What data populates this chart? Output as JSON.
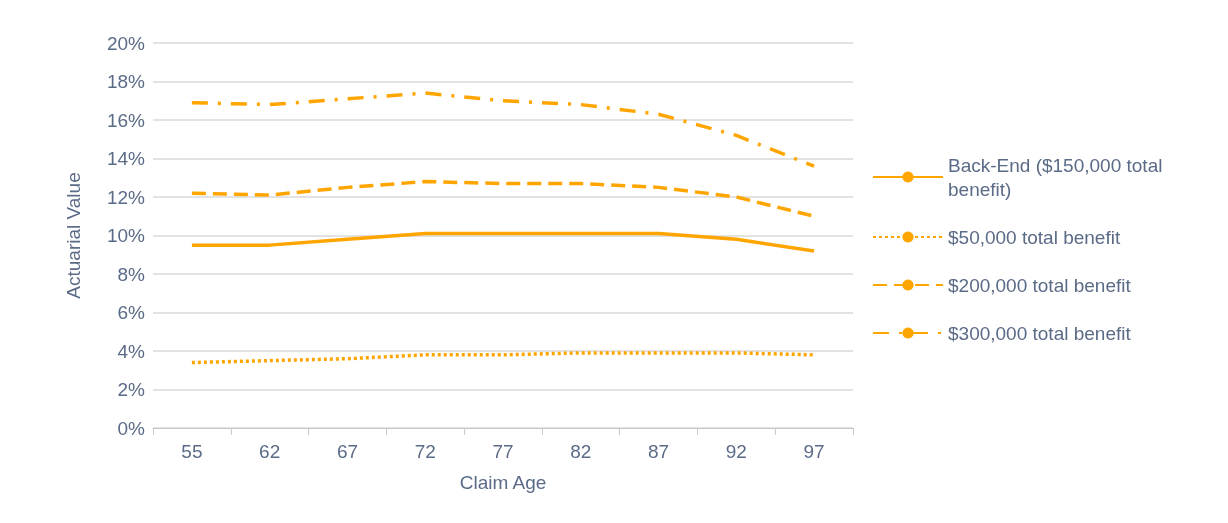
{
  "chart_data": {
    "type": "line",
    "xlabel": "Claim Age",
    "ylabel": "Actuarial Value",
    "categories": [
      "55",
      "62",
      "67",
      "72",
      "77",
      "82",
      "87",
      "92",
      "97"
    ],
    "ylim": [
      0,
      20
    ],
    "yticks": [
      {
        "value": 0,
        "label": "0%"
      },
      {
        "value": 2,
        "label": "2%"
      },
      {
        "value": 4,
        "label": "4%"
      },
      {
        "value": 6,
        "label": "6%"
      },
      {
        "value": 8,
        "label": "8%"
      },
      {
        "value": 10,
        "label": "10%"
      },
      {
        "value": 12,
        "label": "12%"
      },
      {
        "value": 14,
        "label": "14%"
      },
      {
        "value": 16,
        "label": "16%"
      },
      {
        "value": 18,
        "label": "18%"
      },
      {
        "value": 20,
        "label": "20%"
      }
    ],
    "grid": "y",
    "legend": "right",
    "marker": "none",
    "series": [
      {
        "name": "Back-End ($150,000 total benefit)",
        "color": "#ffa500",
        "line_style": "solid",
        "values": [
          9.5,
          9.5,
          9.8,
          10.1,
          10.1,
          10.1,
          10.1,
          9.8,
          9.2
        ]
      },
      {
        "name": "$50,000 total benefit",
        "color": "#ffa500",
        "line_style": "dotted",
        "values": [
          3.4,
          3.5,
          3.6,
          3.8,
          3.8,
          3.9,
          3.9,
          3.9,
          3.8
        ]
      },
      {
        "name": "$200,000 total benefit",
        "color": "#ffa500",
        "line_style": "dashed",
        "values": [
          12.2,
          12.1,
          12.5,
          12.8,
          12.7,
          12.7,
          12.5,
          12.0,
          11.0
        ]
      },
      {
        "name": "$300,000 total benefit",
        "color": "#ffa500",
        "line_style": "dashdot",
        "values": [
          16.9,
          16.8,
          17.1,
          17.4,
          17.0,
          16.8,
          16.3,
          15.2,
          13.6
        ]
      }
    ]
  }
}
